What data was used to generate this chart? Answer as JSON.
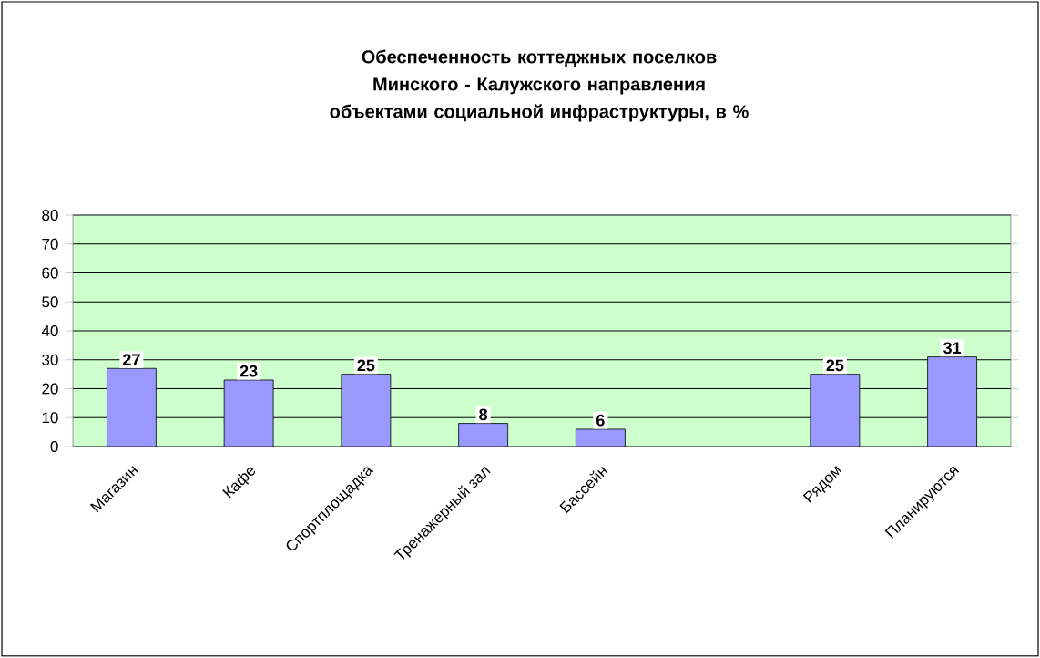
{
  "chart_data": {
    "type": "bar",
    "title": "Обеспеченность коттеджных поселков Минского - Калужского направления объектами социальной инфраструктуры, в %",
    "categories": [
      "Магазин",
      "Кафе",
      "Спортплощадка",
      "Тренажерный зал",
      "Бассейн",
      null,
      "Рядом",
      "Планируются"
    ],
    "values": [
      27,
      23,
      25,
      8,
      6,
      null,
      25,
      31
    ],
    "color": "#9999ff",
    "ylim": [
      0,
      80
    ],
    "yticks": [
      0,
      10,
      20,
      30,
      40,
      50,
      60,
      70,
      80
    ],
    "grid": "y",
    "data_labels": true
  }
}
